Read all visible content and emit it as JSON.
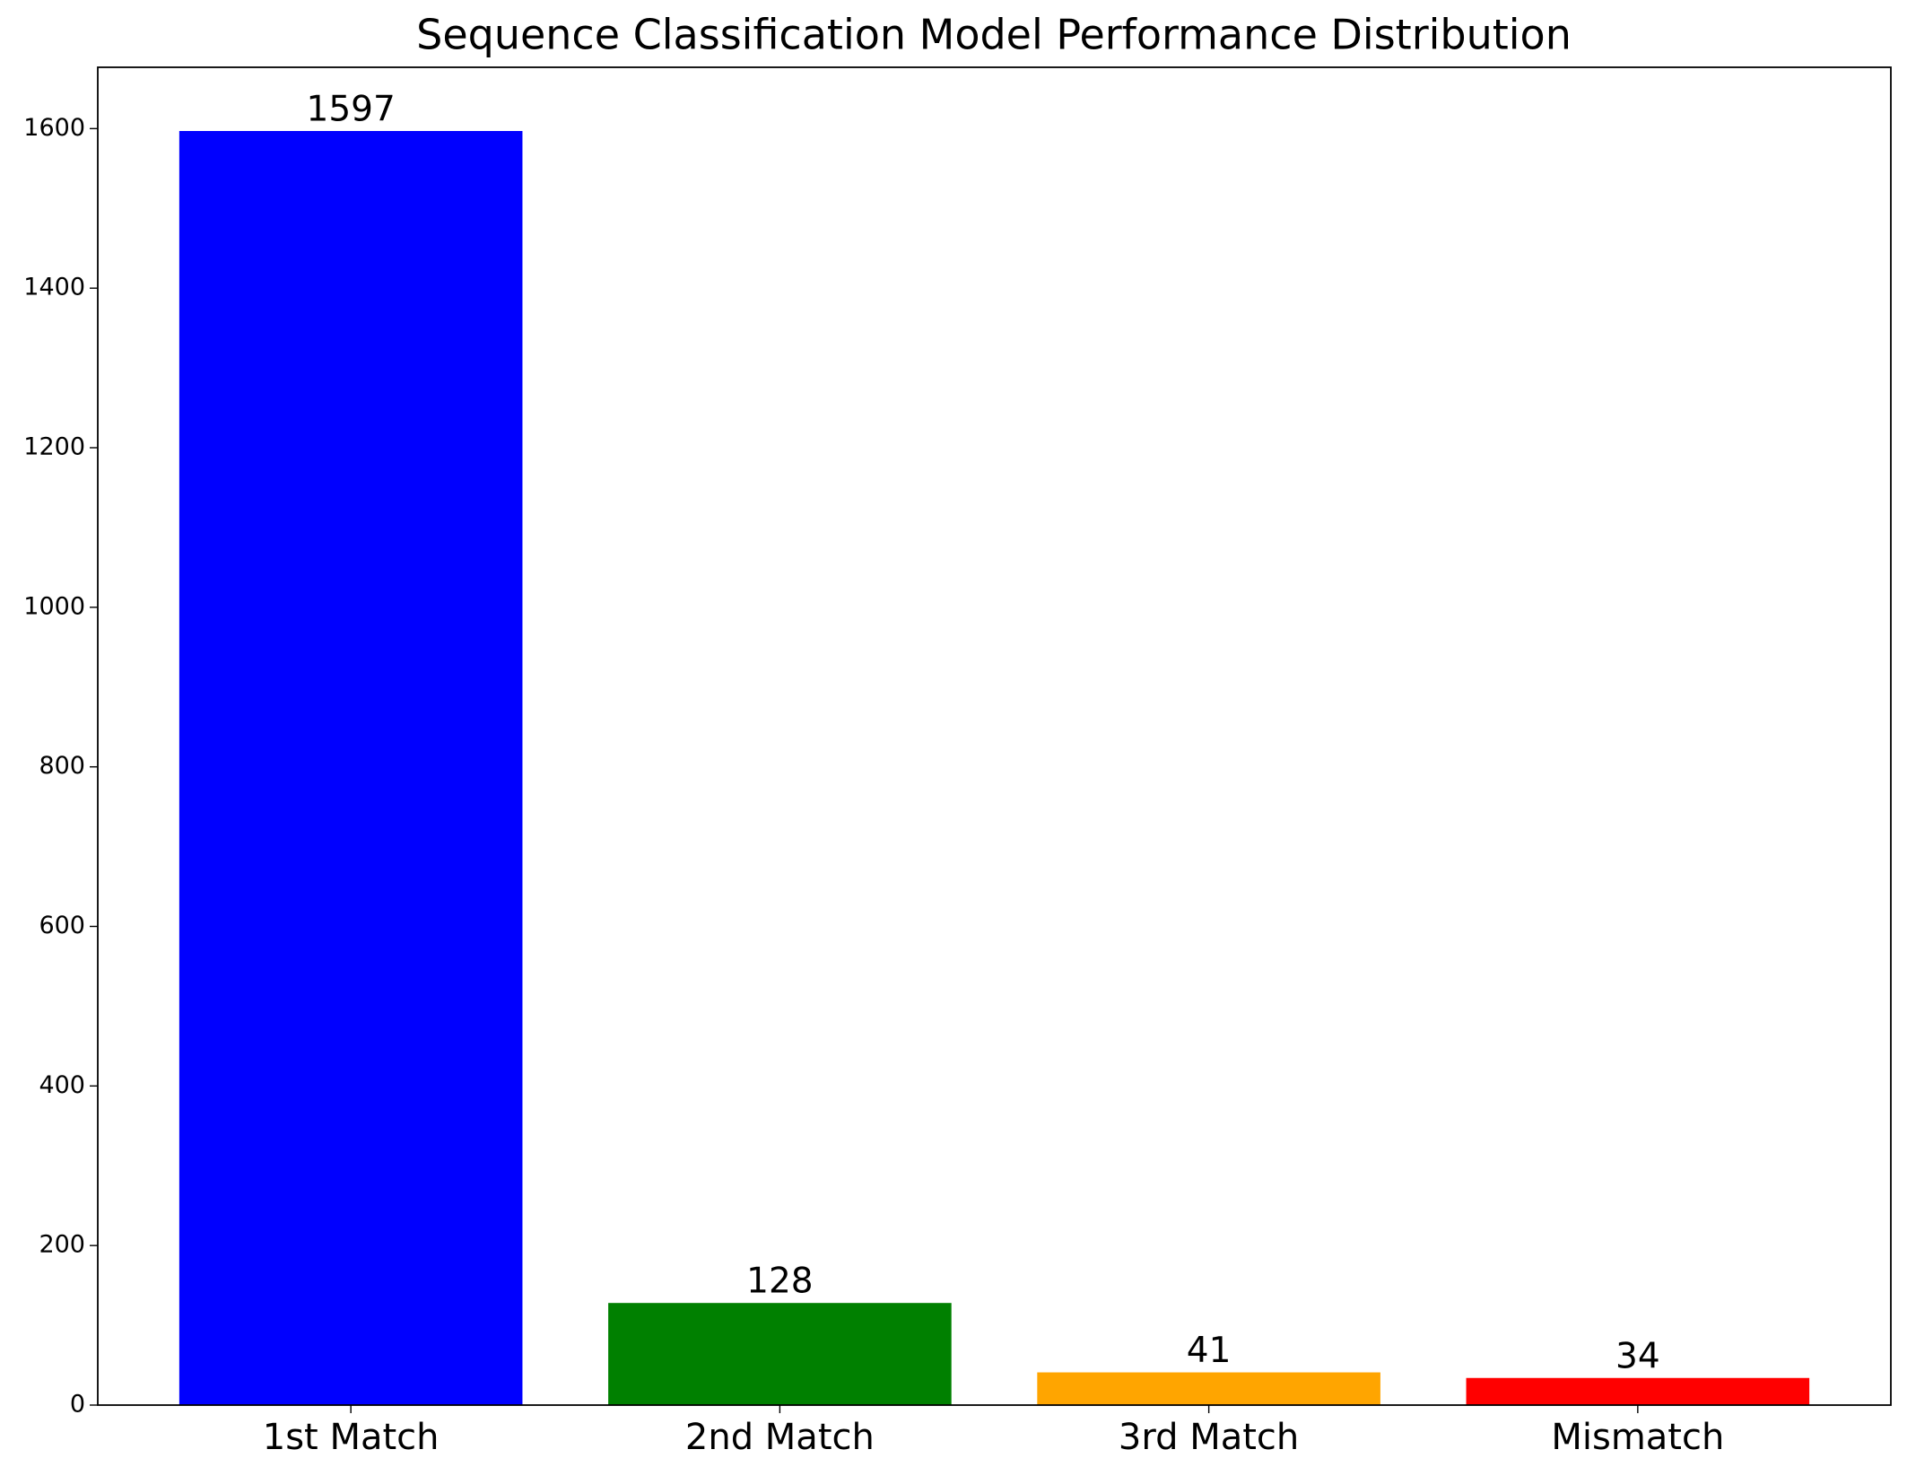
{
  "chart_data": {
    "type": "bar",
    "title": "Sequence Classification Model Performance Distribution",
    "categories": [
      "1st Match",
      "2nd Match",
      "3rd Match",
      "Mismatch"
    ],
    "values": [
      1597,
      128,
      41,
      34
    ],
    "colors": [
      "#0000ff",
      "#008000",
      "#ffa500",
      "#ff0000"
    ],
    "ylim": [
      0,
      1676.85
    ],
    "yticks": [
      0,
      200,
      400,
      600,
      800,
      1000,
      1200,
      1400,
      1600
    ],
    "grid": false
  }
}
